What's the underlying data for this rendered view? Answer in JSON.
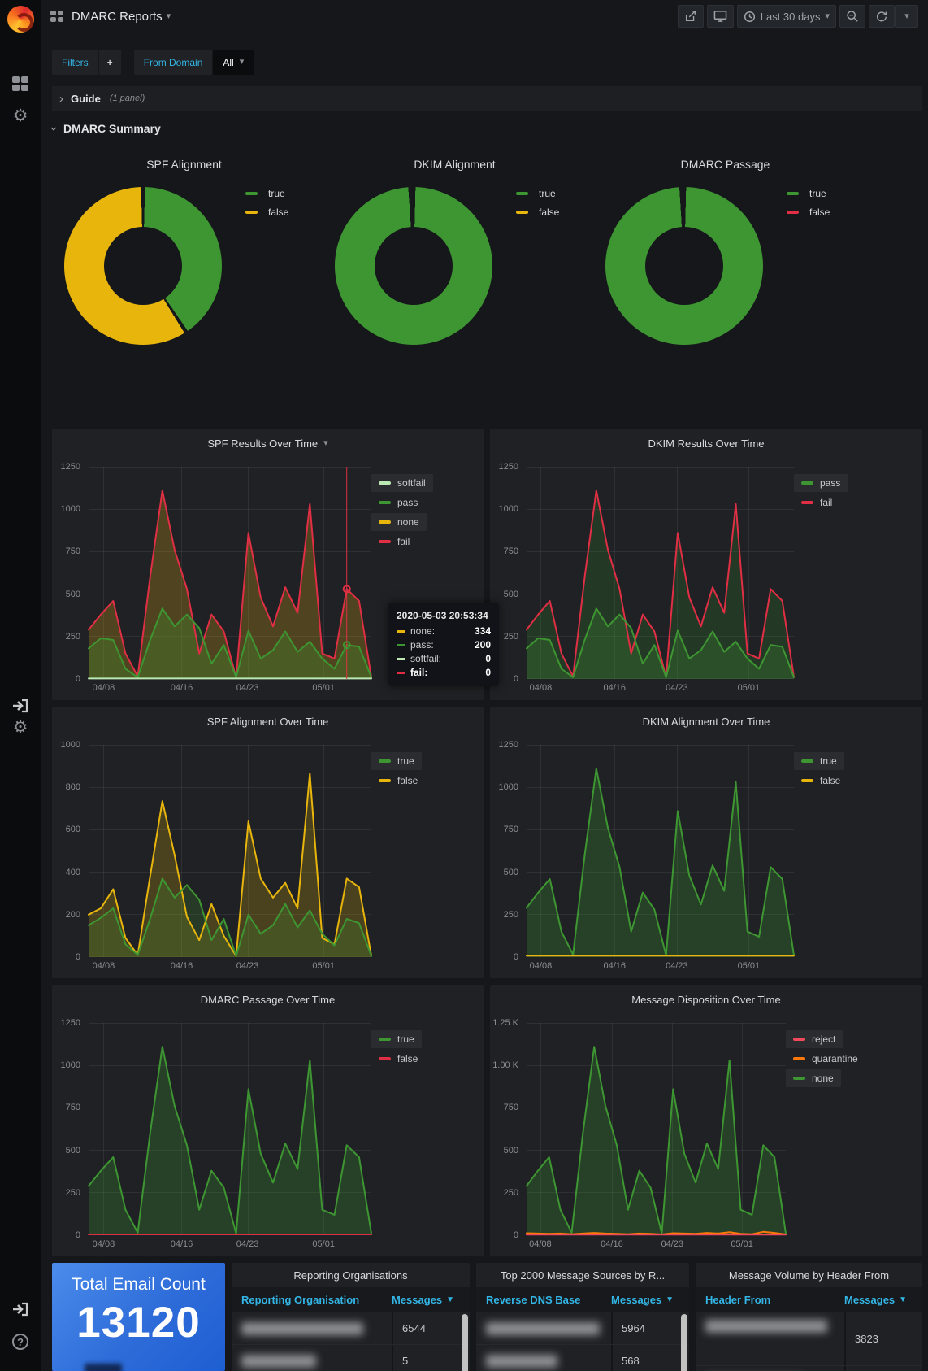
{
  "header": {
    "title": "DMARC Reports",
    "time_range": "Last 30 days"
  },
  "filters": {
    "label": "Filters",
    "add": "+",
    "domain_label": "From Domain",
    "domain_value": "All"
  },
  "guide": {
    "title": "Guide",
    "count": "(1 panel)"
  },
  "summary": {
    "title": "DMARC Summary"
  },
  "stat": {
    "title": "Total Email Count",
    "value": "13120"
  },
  "tooltip": {
    "time": "2020-05-03 20:53:34",
    "rows": [
      {
        "label": "none:",
        "value": "334",
        "color": "#E8B50C"
      },
      {
        "label": "pass:",
        "value": "200",
        "color": "#3E9632"
      },
      {
        "label": "softfail:",
        "value": "0",
        "color": "#BCE8B2"
      },
      {
        "label": "fail:",
        "value": "0",
        "color": "#E02F44"
      }
    ]
  },
  "donuts": [
    {
      "title": "SPF Alignment",
      "legend": [
        {
          "label": "true",
          "color": "#3E9632"
        },
        {
          "label": "false",
          "color": "#E8B50C"
        }
      ],
      "slices": [
        {
          "label": "true",
          "pct": 40.8,
          "color": "#3E9632"
        },
        {
          "label": "false",
          "pct": 59.2,
          "color": "#E8B50C"
        }
      ]
    },
    {
      "title": "DKIM Alignment",
      "legend": [
        {
          "label": "true",
          "color": "#3E9632"
        },
        {
          "label": "false",
          "color": "#E8B50C"
        }
      ],
      "slices": [
        {
          "label": "true",
          "pct": 99.3,
          "color": "#3E9632"
        },
        {
          "label": "false",
          "pct": 0.7,
          "color": "#E8B50C"
        }
      ]
    },
    {
      "title": "DMARC Passage",
      "legend": [
        {
          "label": "true",
          "color": "#3E9632"
        },
        {
          "label": "false",
          "color": "#E02F44"
        }
      ],
      "slices": [
        {
          "label": "true",
          "pct": 99.4,
          "color": "#3E9632"
        },
        {
          "label": "false",
          "pct": 0.6,
          "color": "#E02F44"
        }
      ]
    }
  ],
  "charts": {
    "spf_results": {
      "title": "SPF Results Over Time",
      "type": "line",
      "y_max": 1250,
      "y_labels": [
        "1250",
        "1000",
        "750",
        "500",
        "250",
        "0"
      ],
      "x_ticks": [
        {
          "label": "04/08",
          "f": 0.053
        },
        {
          "label": "04/16",
          "f": 0.329
        },
        {
          "label": "04/23",
          "f": 0.562
        },
        {
          "label": "05/01",
          "f": 0.831
        }
      ],
      "legend": [
        {
          "label": "softfail",
          "color": "#BCE8B2"
        },
        {
          "label": "pass",
          "color": "#3E9632"
        },
        {
          "label": "none",
          "color": "#E8B50C"
        },
        {
          "label": "fail",
          "color": "#E02F44"
        }
      ],
      "series": [
        {
          "name": "fail",
          "color": "#E02F44",
          "fill": "rgba(229,172,14,0.25)",
          "values": [
            290,
            380,
            460,
            150,
            15,
            600,
            1110,
            760,
            530,
            150,
            380,
            280,
            10,
            860,
            480,
            310,
            540,
            390,
            1030,
            150,
            120,
            530,
            460,
            10
          ]
        },
        {
          "name": "pass",
          "color": "#3E9632",
          "fill": "rgba(62,150,50,0.30)",
          "values": [
            180,
            240,
            230,
            60,
            10,
            230,
            415,
            310,
            380,
            300,
            90,
            200,
            10,
            285,
            120,
            170,
            280,
            160,
            220,
            120,
            60,
            200,
            190,
            10
          ]
        },
        {
          "name": "softfail",
          "color": "#BCE8B2",
          "flat": 3
        }
      ],
      "cursor": {
        "f": 0.913,
        "markers": [
          {
            "v": 530,
            "c": "#E02F44"
          },
          {
            "v": 200,
            "c": "#3E9632"
          }
        ]
      }
    },
    "dkim_results": {
      "title": "DKIM Results Over Time",
      "type": "line",
      "y_max": 1250,
      "y_labels": [
        "1250",
        "1000",
        "750",
        "500",
        "250",
        "0"
      ],
      "x_ticks": [
        {
          "label": "04/08",
          "f": 0.053
        },
        {
          "label": "04/16",
          "f": 0.329
        },
        {
          "label": "04/23",
          "f": 0.562
        },
        {
          "label": "05/01",
          "f": 0.831
        }
      ],
      "legend": [
        {
          "label": "pass",
          "color": "#3E9632"
        },
        {
          "label": "fail",
          "color": "#E02F44"
        }
      ],
      "series": [
        {
          "name": "fail",
          "color": "#E02F44",
          "fill": "rgba(62,150,50,0.20)",
          "values": [
            290,
            380,
            460,
            150,
            15,
            600,
            1110,
            760,
            530,
            150,
            380,
            280,
            10,
            860,
            480,
            310,
            540,
            390,
            1030,
            150,
            120,
            530,
            460,
            10
          ]
        },
        {
          "name": "pass",
          "color": "#3E9632",
          "fill": "rgba(62,150,50,0.25)",
          "values": [
            180,
            240,
            230,
            60,
            10,
            230,
            415,
            310,
            380,
            300,
            90,
            200,
            10,
            285,
            120,
            170,
            280,
            160,
            220,
            120,
            60,
            200,
            190,
            10
          ]
        }
      ]
    },
    "spf_align": {
      "title": "SPF Alignment Over Time",
      "type": "line",
      "y_max": 1000,
      "y_labels": [
        "1000",
        "800",
        "600",
        "400",
        "200",
        "0"
      ],
      "x_ticks": [
        {
          "label": "04/08",
          "f": 0.053
        },
        {
          "label": "04/16",
          "f": 0.329
        },
        {
          "label": "04/23",
          "f": 0.562
        },
        {
          "label": "05/01",
          "f": 0.831
        }
      ],
      "legend": [
        {
          "label": "true",
          "color": "#3E9632"
        },
        {
          "label": "false",
          "color": "#E8B50C"
        }
      ],
      "series": [
        {
          "name": "false",
          "color": "#E8B50C",
          "fill": "rgba(229,181,12,0.22)",
          "values": [
            200,
            230,
            320,
            90,
            10,
            380,
            735,
            480,
            190,
            80,
            250,
            100,
            5,
            640,
            370,
            280,
            350,
            230,
            865,
            90,
            60,
            370,
            330,
            5
          ]
        },
        {
          "name": "true",
          "color": "#3E9632",
          "fill": "rgba(62,150,50,0.22)",
          "values": [
            150,
            185,
            230,
            60,
            10,
            180,
            370,
            280,
            340,
            270,
            80,
            180,
            5,
            200,
            110,
            150,
            250,
            140,
            220,
            110,
            55,
            180,
            160,
            5
          ]
        }
      ]
    },
    "dkim_align": {
      "title": "DKIM Alignment Over Time",
      "type": "line",
      "y_max": 1250,
      "y_labels": [
        "1250",
        "1000",
        "750",
        "500",
        "250",
        "0"
      ],
      "x_ticks": [
        {
          "label": "04/08",
          "f": 0.053
        },
        {
          "label": "04/16",
          "f": 0.329
        },
        {
          "label": "04/23",
          "f": 0.562
        },
        {
          "label": "05/01",
          "f": 0.831
        }
      ],
      "legend": [
        {
          "label": "true",
          "color": "#3E9632"
        },
        {
          "label": "false",
          "color": "#E8B50C"
        }
      ],
      "series": [
        {
          "name": "true",
          "color": "#3E9632",
          "fill": "rgba(62,150,50,0.28)",
          "values": [
            290,
            380,
            460,
            150,
            15,
            600,
            1110,
            760,
            530,
            150,
            380,
            280,
            10,
            860,
            480,
            310,
            540,
            390,
            1030,
            150,
            120,
            530,
            460,
            10
          ]
        },
        {
          "name": "false",
          "color": "#E8B50C",
          "flat": 8
        }
      ]
    },
    "dmarc_passage": {
      "title": "DMARC Passage Over Time",
      "type": "line",
      "y_max": 1250,
      "y_labels": [
        "1250",
        "1000",
        "750",
        "500",
        "250",
        "0"
      ],
      "x_ticks": [
        {
          "label": "04/08",
          "f": 0.053
        },
        {
          "label": "04/16",
          "f": 0.329
        },
        {
          "label": "04/23",
          "f": 0.562
        },
        {
          "label": "05/01",
          "f": 0.831
        }
      ],
      "legend": [
        {
          "label": "true",
          "color": "#3E9632"
        },
        {
          "label": "false",
          "color": "#E02F44"
        }
      ],
      "series": [
        {
          "name": "true",
          "color": "#3E9632",
          "fill": "rgba(62,150,50,0.28)",
          "values": [
            290,
            380,
            460,
            150,
            15,
            600,
            1110,
            760,
            530,
            150,
            380,
            280,
            10,
            860,
            480,
            310,
            540,
            390,
            1030,
            150,
            120,
            530,
            460,
            10
          ]
        },
        {
          "name": "false",
          "color": "#E02F44",
          "flat": 5
        }
      ]
    },
    "disposition": {
      "title": "Message Disposition Over Time",
      "type": "line",
      "y_max": 1250,
      "y_labels": [
        "1.25 K",
        "1.00 K",
        "750",
        "500",
        "250",
        "0"
      ],
      "x_ticks": [
        {
          "label": "04/08",
          "f": 0.053
        },
        {
          "label": "04/16",
          "f": 0.329
        },
        {
          "label": "04/23",
          "f": 0.562
        },
        {
          "label": "05/01",
          "f": 0.831
        }
      ],
      "legend": [
        {
          "label": "reject",
          "color": "#F2495C"
        },
        {
          "label": "quarantine",
          "color": "#FF780A"
        },
        {
          "label": "none",
          "color": "#3E9632"
        }
      ],
      "series": [
        {
          "name": "none",
          "color": "#3E9632",
          "fill": "rgba(62,150,50,0.28)",
          "values": [
            290,
            380,
            460,
            150,
            15,
            600,
            1110,
            760,
            530,
            150,
            380,
            280,
            10,
            860,
            480,
            310,
            540,
            390,
            1030,
            150,
            120,
            530,
            460,
            10
          ]
        },
        {
          "name": "quarantine",
          "color": "#FF780A",
          "values": [
            12,
            10,
            8,
            10,
            6,
            10,
            14,
            10,
            8,
            6,
            10,
            8,
            5,
            12,
            10,
            8,
            14,
            10,
            18,
            8,
            6,
            20,
            14,
            5
          ]
        },
        {
          "name": "reject",
          "color": "#F2495C",
          "flat": 4
        }
      ]
    }
  },
  "tables": {
    "reporting": {
      "title": "Reporting Organisations",
      "col1": "Reporting Organisation",
      "col2": "Messages",
      "rows": [
        {
          "blur": 150,
          "value": "6544"
        },
        {
          "blur": 92,
          "value": "5"
        },
        {
          "blur": 120,
          "value": ""
        }
      ]
    },
    "sources": {
      "title": "Top 2000 Message Sources by R...",
      "col1": "Reverse DNS Base",
      "col2": "Messages",
      "rows": [
        {
          "blur": 140,
          "value": "5964"
        },
        {
          "blur": 88,
          "value": "568"
        },
        {
          "blur": 110,
          "value": ""
        }
      ]
    },
    "volume": {
      "title": "Message Volume by Header From",
      "col1": "Header From",
      "col2": "Messages",
      "rows": [
        {
          "blur": 150,
          "value": "3823",
          "tall": true
        },
        {
          "blur": 120,
          "value": ""
        }
      ]
    }
  }
}
